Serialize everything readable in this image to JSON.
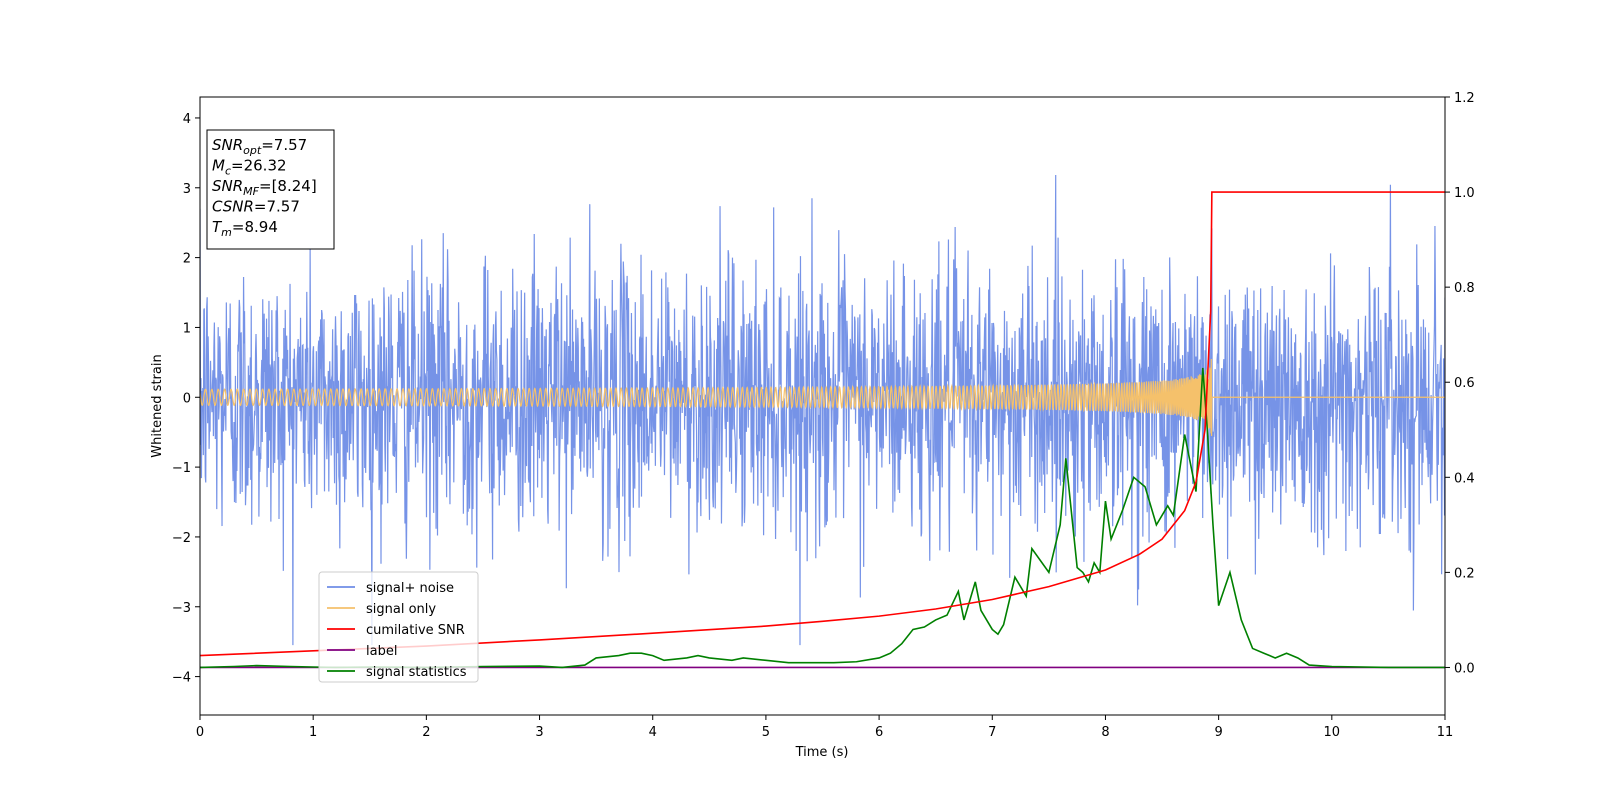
{
  "chart_data": {
    "type": "line",
    "xlabel": "Time (s)",
    "ylabel": "Whitened strain",
    "xlim": [
      0,
      11
    ],
    "ylim_left": [
      -4.55,
      4.3
    ],
    "ylim_right": [
      -0.1,
      1.2
    ],
    "x_ticks": [
      "0",
      "1",
      "2",
      "3",
      "4",
      "5",
      "6",
      "7",
      "8",
      "9",
      "10",
      "11"
    ],
    "y_ticks_left": [
      "4",
      "3",
      "2",
      "1",
      "0",
      "−1",
      "−2",
      "−3",
      "−4"
    ],
    "y_ticks_right": [
      "1.2",
      "1.0",
      "0.8",
      "0.6",
      "0.4",
      "0.2",
      "0.0"
    ],
    "grid": false,
    "legend_position": "lower-left",
    "info_box": [
      {
        "sym": "SNR",
        "sub": "opt",
        "value": "=7.57"
      },
      {
        "sym": "M",
        "sub": "c",
        "value": "=26.32"
      },
      {
        "sym": "SNR",
        "sub": "MF",
        "value": "=[8.24]"
      },
      {
        "sym": "CSNR",
        "sub": "",
        "value": "=7.57"
      },
      {
        "sym": "T",
        "sub": "m",
        "value": "=8.94"
      }
    ],
    "series": [
      {
        "name": "signal+ noise",
        "color": "#6f8de6",
        "axis": "left",
        "description_values": {
          "mean": 0,
          "std": 1,
          "range": [
            -3.55,
            3.35
          ]
        }
      },
      {
        "name": "signal only",
        "color": "#f5c16b",
        "axis": "left",
        "chirp": {
          "merger_time": 8.94,
          "peak_amplitude": 0.6,
          "zero_after_merger": true
        }
      },
      {
        "name": "cumilative SNR",
        "color": "#ff0000",
        "axis": "right",
        "points": [
          [
            0,
            0.025
          ],
          [
            1,
            0.035
          ],
          [
            2,
            0.045
          ],
          [
            3,
            0.058
          ],
          [
            4,
            0.072
          ],
          [
            5,
            0.087
          ],
          [
            5.5,
            0.097
          ],
          [
            6,
            0.108
          ],
          [
            6.5,
            0.123
          ],
          [
            7,
            0.143
          ],
          [
            7.5,
            0.17
          ],
          [
            8,
            0.205
          ],
          [
            8.3,
            0.238
          ],
          [
            8.5,
            0.27
          ],
          [
            8.7,
            0.33
          ],
          [
            8.8,
            0.39
          ],
          [
            8.88,
            0.5
          ],
          [
            8.93,
            0.75
          ],
          [
            8.94,
            1.0
          ],
          [
            11,
            1.0
          ]
        ]
      },
      {
        "name": "label",
        "color": "#800080",
        "axis": "right",
        "points": [
          [
            0,
            0
          ],
          [
            11,
            0
          ]
        ]
      },
      {
        "name": "signal statistics",
        "color": "#008000",
        "axis": "right",
        "points": [
          [
            0,
            0.0
          ],
          [
            0.3,
            0.002
          ],
          [
            0.5,
            0.004
          ],
          [
            0.8,
            0.002
          ],
          [
            1.0,
            0.001
          ],
          [
            1.2,
            0.0
          ],
          [
            1.5,
            0.001
          ],
          [
            2.0,
            0.0
          ],
          [
            2.5,
            0.002
          ],
          [
            3.0,
            0.003
          ],
          [
            3.2,
            0.0
          ],
          [
            3.4,
            0.005
          ],
          [
            3.5,
            0.02
          ],
          [
            3.7,
            0.025
          ],
          [
            3.8,
            0.03
          ],
          [
            3.9,
            0.03
          ],
          [
            4.0,
            0.025
          ],
          [
            4.1,
            0.015
          ],
          [
            4.3,
            0.02
          ],
          [
            4.4,
            0.025
          ],
          [
            4.5,
            0.02
          ],
          [
            4.7,
            0.015
          ],
          [
            4.8,
            0.02
          ],
          [
            5.0,
            0.015
          ],
          [
            5.2,
            0.01
          ],
          [
            5.4,
            0.01
          ],
          [
            5.6,
            0.01
          ],
          [
            5.8,
            0.012
          ],
          [
            6.0,
            0.02
          ],
          [
            6.1,
            0.03
          ],
          [
            6.2,
            0.05
          ],
          [
            6.3,
            0.08
          ],
          [
            6.4,
            0.085
          ],
          [
            6.5,
            0.1
          ],
          [
            6.6,
            0.11
          ],
          [
            6.7,
            0.16
          ],
          [
            6.75,
            0.1
          ],
          [
            6.85,
            0.18
          ],
          [
            6.9,
            0.12
          ],
          [
            7.0,
            0.08
          ],
          [
            7.05,
            0.07
          ],
          [
            7.1,
            0.09
          ],
          [
            7.2,
            0.19
          ],
          [
            7.3,
            0.15
          ],
          [
            7.35,
            0.25
          ],
          [
            7.5,
            0.2
          ],
          [
            7.6,
            0.3
          ],
          [
            7.65,
            0.44
          ],
          [
            7.75,
            0.21
          ],
          [
            7.8,
            0.2
          ],
          [
            7.85,
            0.18
          ],
          [
            7.9,
            0.22
          ],
          [
            7.95,
            0.2
          ],
          [
            8.0,
            0.35
          ],
          [
            8.05,
            0.27
          ],
          [
            8.15,
            0.33
          ],
          [
            8.25,
            0.4
          ],
          [
            8.35,
            0.38
          ],
          [
            8.45,
            0.3
          ],
          [
            8.55,
            0.34
          ],
          [
            8.6,
            0.32
          ],
          [
            8.7,
            0.49
          ],
          [
            8.75,
            0.43
          ],
          [
            8.8,
            0.37
          ],
          [
            8.86,
            0.63
          ],
          [
            8.9,
            0.5
          ],
          [
            8.95,
            0.3
          ],
          [
            9.0,
            0.13
          ],
          [
            9.1,
            0.2
          ],
          [
            9.2,
            0.1
          ],
          [
            9.3,
            0.04
          ],
          [
            9.4,
            0.03
          ],
          [
            9.5,
            0.02
          ],
          [
            9.6,
            0.03
          ],
          [
            9.7,
            0.02
          ],
          [
            9.8,
            0.005
          ],
          [
            10.0,
            0.002
          ],
          [
            10.5,
            0.0
          ],
          [
            11.0,
            0.0
          ]
        ]
      }
    ]
  }
}
